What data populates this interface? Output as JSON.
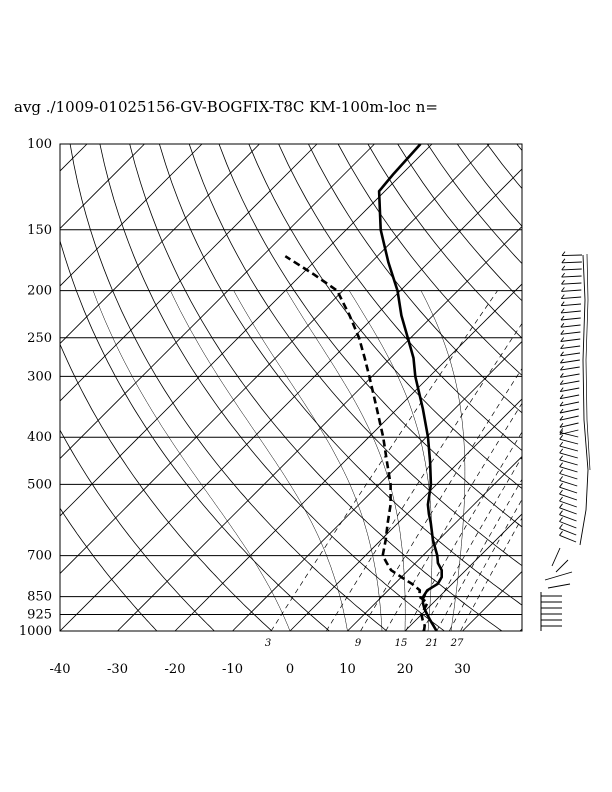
{
  "title": "avg ./1009-01025156-GV-BOGFIX-T8C KM-100m-loc n=",
  "chart_data": {
    "type": "line",
    "subtype": "skew-t log-p",
    "title": "avg ./1009-01025156-GV-BOGFIX-T8C KM-100m-loc n=",
    "xlabel": "",
    "ylabel": "",
    "x_ticks": [
      -40,
      -30,
      -20,
      -10,
      0,
      10,
      20,
      30
    ],
    "y_ticks": [
      100,
      150,
      200,
      250,
      300,
      400,
      500,
      700,
      850,
      925,
      1000
    ],
    "mixing_ratio_labels": [
      "3",
      "9",
      "15",
      "21",
      "27"
    ],
    "ylim": [
      1000,
      100
    ],
    "xlim": [
      -40,
      40
    ],
    "log_scale_y": true,
    "grid": true,
    "series": [
      {
        "style": "solid",
        "points": [
          {
            "p": 1000,
            "t": 25.5
          },
          {
            "p": 975,
            "t": 24.0
          },
          {
            "p": 950,
            "t": 22.5
          },
          {
            "p": 925,
            "t": 21.0
          },
          {
            "p": 900,
            "t": 19.5
          },
          {
            "p": 875,
            "t": 18.2
          },
          {
            "p": 850,
            "t": 17.2
          },
          {
            "p": 825,
            "t": 16.8
          },
          {
            "p": 800,
            "t": 17.5
          },
          {
            "p": 775,
            "t": 17.0
          },
          {
            "p": 750,
            "t": 15.8
          },
          {
            "p": 725,
            "t": 13.9
          },
          {
            "p": 700,
            "t": 12.5
          },
          {
            "p": 650,
            "t": 9.0
          },
          {
            "p": 600,
            "t": 5.7
          },
          {
            "p": 575,
            "t": 3.8
          },
          {
            "p": 550,
            "t": 2.0
          },
          {
            "p": 500,
            "t": -1.0
          },
          {
            "p": 450,
            "t": -5.0
          },
          {
            "p": 400,
            "t": -9.7
          },
          {
            "p": 350,
            "t": -15.5
          },
          {
            "p": 300,
            "t": -22.5
          },
          {
            "p": 275,
            "t": -26.0
          },
          {
            "p": 250,
            "t": -30.5
          },
          {
            "p": 225,
            "t": -35.5
          },
          {
            "p": 200,
            "t": -40.5
          },
          {
            "p": 175,
            "t": -47.0
          },
          {
            "p": 150,
            "t": -54.0
          },
          {
            "p": 125,
            "t": -61.0
          },
          {
            "p": 115,
            "t": -61.5
          },
          {
            "p": 100,
            "t": -62.0
          }
        ]
      },
      {
        "style": "dashed",
        "points": [
          {
            "p": 1000,
            "t": 23.3
          },
          {
            "p": 975,
            "t": 22.5
          },
          {
            "p": 950,
            "t": 21.2
          },
          {
            "p": 925,
            "t": 20.0
          },
          {
            "p": 900,
            "t": 19.5
          },
          {
            "p": 875,
            "t": 19.0
          },
          {
            "p": 850,
            "t": 16.5
          },
          {
            "p": 825,
            "t": 15.5
          },
          {
            "p": 800,
            "t": 13.0
          },
          {
            "p": 775,
            "t": 10.0
          },
          {
            "p": 750,
            "t": 7.0
          },
          {
            "p": 725,
            "t": 5.0
          },
          {
            "p": 700,
            "t": 3.0
          },
          {
            "p": 650,
            "t": 0.8
          },
          {
            "p": 600,
            "t": -1.8
          },
          {
            "p": 550,
            "t": -4.5
          },
          {
            "p": 500,
            "t": -8.0
          },
          {
            "p": 450,
            "t": -12.5
          },
          {
            "p": 400,
            "t": -17.5
          },
          {
            "p": 350,
            "t": -23.5
          },
          {
            "p": 300,
            "t": -30.5
          },
          {
            "p": 275,
            "t": -34.5
          },
          {
            "p": 250,
            "t": -39.0
          },
          {
            "p": 225,
            "t": -44.5
          },
          {
            "p": 200,
            "t": -51.0
          },
          {
            "p": 185,
            "t": -58.0
          },
          {
            "p": 170,
            "t": -66.0
          }
        ]
      }
    ],
    "wind_barbs_present": true
  }
}
